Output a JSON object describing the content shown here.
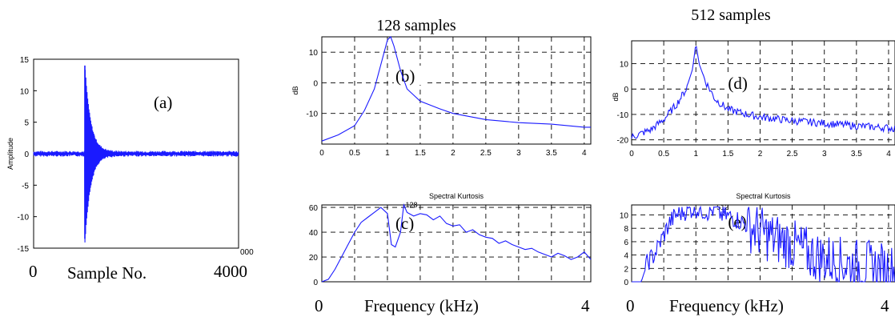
{
  "headers": {
    "left": "128 samples",
    "right": "512 samples"
  },
  "bottom_labels": {
    "a": {
      "start": "0",
      "mid": "Sample No.",
      "end": "4000"
    },
    "left": {
      "start": "0",
      "mid": "Frequency (kHz)",
      "end": "4"
    },
    "right": {
      "start": "0",
      "mid": "Frequency (kHz)",
      "end": "4"
    }
  },
  "colors": {
    "signal": "#1a1aff",
    "axes": "#000000"
  },
  "chart_data": [
    {
      "id": "a",
      "type": "line",
      "panel_label": "(a)",
      "ylabel": "Amplitude",
      "xlim": [
        0,
        4000
      ],
      "ylim": [
        -15,
        15
      ],
      "yticks": [
        "15",
        "10",
        "5",
        "0",
        "-5",
        "-10",
        "-15"
      ],
      "xtick_end": "000",
      "grid": false,
      "description_values": {
        "impulse_at": 1000,
        "peak": 14,
        "trough": -13.5,
        "noise_level": 0.3
      }
    },
    {
      "id": "b",
      "type": "line",
      "panel_label": "(b)",
      "ylabel": "dB",
      "xlim": [
        0,
        4.1
      ],
      "ylim": [
        -20,
        15
      ],
      "xticks": [
        "0",
        "0.5",
        "1",
        "1.5",
        "2",
        "2.5",
        "3",
        "3.5",
        "4"
      ],
      "yticks": [
        "10",
        "0",
        "-10"
      ],
      "grid": true,
      "x": [
        0,
        0.25,
        0.5,
        0.65,
        0.8,
        0.9,
        1.0,
        1.05,
        1.1,
        1.2,
        1.3,
        1.5,
        1.8,
        2.0,
        2.5,
        3.0,
        3.5,
        4.0,
        4.1
      ],
      "y": [
        -19,
        -17,
        -14,
        -9,
        -2,
        6,
        14,
        15,
        12,
        4,
        -2,
        -6,
        -8.5,
        -10,
        -12,
        -13,
        -13.5,
        -14.5,
        -14.5
      ]
    },
    {
      "id": "c",
      "type": "line",
      "panel_label": "(c)",
      "title": "Spectral Kurtosis",
      "annotation": "128",
      "xlim": [
        0,
        4.1
      ],
      "ylim": [
        0,
        62
      ],
      "yticks": [
        "60",
        "40",
        "20",
        "0"
      ],
      "grid": true,
      "x": [
        0,
        0.1,
        0.2,
        0.3,
        0.4,
        0.5,
        0.6,
        0.7,
        0.8,
        0.9,
        1.0,
        1.06,
        1.12,
        1.2,
        1.25,
        1.3,
        1.4,
        1.5,
        1.6,
        1.7,
        1.8,
        1.9,
        2.0,
        2.1,
        2.2,
        2.3,
        2.4,
        2.5,
        2.6,
        2.7,
        2.8,
        2.9,
        3.0,
        3.1,
        3.2,
        3.3,
        3.4,
        3.5,
        3.6,
        3.7,
        3.8,
        3.9,
        4.0,
        4.1
      ],
      "y": [
        0,
        2,
        10,
        20,
        30,
        40,
        48,
        52,
        56,
        60,
        55,
        30,
        28,
        40,
        62,
        56,
        53,
        55,
        54,
        50,
        53,
        47,
        45,
        46,
        40,
        42,
        38,
        36,
        35,
        31,
        33,
        30,
        28,
        26,
        27,
        24,
        22,
        20,
        23,
        21,
        18,
        20,
        24,
        18
      ]
    },
    {
      "id": "d",
      "type": "line",
      "panel_label": "(d)",
      "ylabel": "dB",
      "xlim": [
        0,
        4.1
      ],
      "ylim": [
        -22,
        19
      ],
      "xticks": [
        "0",
        "0.5",
        "1",
        "1.5",
        "2",
        "2.5",
        "3",
        "3.5",
        "4"
      ],
      "yticks": [
        "10",
        "0",
        "-10",
        "-20"
      ],
      "grid": true,
      "x": [
        0,
        0.3,
        0.5,
        0.7,
        0.85,
        0.95,
        1.0,
        1.05,
        1.15,
        1.3,
        1.5,
        1.8,
        2.0,
        2.5,
        3.0,
        3.5,
        4.1
      ],
      "y": [
        -19,
        -16,
        -12,
        -6,
        0,
        8,
        18,
        10,
        3,
        -4,
        -8,
        -10,
        -11,
        -12.5,
        -13.5,
        -14.5,
        -15.5
      ]
    },
    {
      "id": "e",
      "type": "line",
      "panel_label": "(e)",
      "title": "Spectral Kurtosis",
      "annotation": "512",
      "xlim": [
        0,
        4.1
      ],
      "ylim": [
        0,
        11.5
      ],
      "yticks": [
        "10",
        "8",
        "6",
        "4",
        "2",
        "0"
      ],
      "grid": true,
      "x": [
        0,
        0.15,
        0.25,
        0.35,
        0.5,
        0.6,
        0.7,
        0.8,
        0.9,
        1.0,
        1.1,
        1.2,
        1.3,
        1.4,
        1.5,
        1.6,
        1.7,
        1.8,
        1.9,
        2.0,
        2.2,
        2.4,
        2.6,
        2.8,
        3.0,
        3.2,
        3.4,
        3.6,
        3.8,
        4.0,
        4.1
      ],
      "y": [
        0,
        0,
        3,
        4,
        7,
        9,
        10,
        10.5,
        10.8,
        11,
        10.7,
        10.5,
        10.9,
        10,
        9.8,
        9.5,
        9,
        8.5,
        8,
        7.5,
        6.5,
        6,
        5,
        4,
        3.5,
        3,
        2.5,
        2.5,
        2,
        2,
        1.5
      ],
      "noise_amplitude": 2.5
    }
  ]
}
